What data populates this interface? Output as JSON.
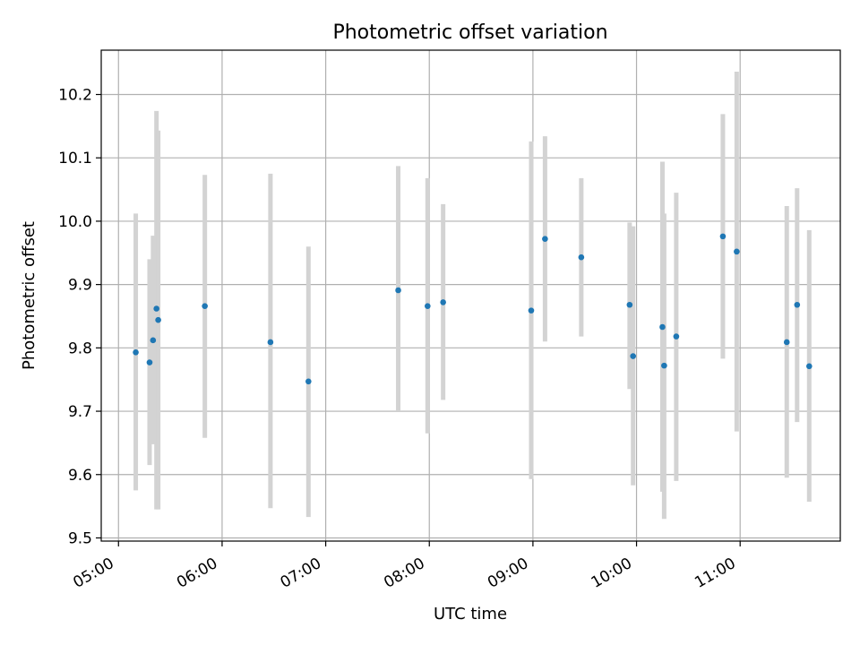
{
  "chart_data": {
    "type": "scatter",
    "title": "Photometric offset variation",
    "xlabel": "UTC time",
    "ylabel": "Photometric offset",
    "xlim": [
      "04:50",
      "11:58"
    ],
    "ylim": [
      9.495,
      10.27
    ],
    "grid": true,
    "x_ticks": [
      "05:00",
      "06:00",
      "07:00",
      "08:00",
      "09:00",
      "10:00",
      "11:00"
    ],
    "y_ticks": [
      "9.5",
      "9.6",
      "9.7",
      "9.8",
      "9.9",
      "10.0",
      "10.1",
      "10.2"
    ],
    "colors": {
      "marker": "#1f77b4",
      "errorbar": "#d3d3d3",
      "grid": "#b0b0b0"
    },
    "series": [
      {
        "points": [
          {
            "x": "05:10",
            "y": 9.793,
            "ylow": 9.575,
            "yhigh": 10.012
          },
          {
            "x": "05:18",
            "y": 9.777,
            "ylow": 9.615,
            "yhigh": 9.94
          },
          {
            "x": "05:20",
            "y": 9.812,
            "ylow": 9.648,
            "yhigh": 9.977
          },
          {
            "x": "05:22",
            "y": 9.862,
            "ylow": 9.545,
            "yhigh": 10.174
          },
          {
            "x": "05:23",
            "y": 9.844,
            "ylow": 9.545,
            "yhigh": 10.143
          },
          {
            "x": "05:50",
            "y": 9.866,
            "ylow": 9.658,
            "yhigh": 10.073
          },
          {
            "x": "06:28",
            "y": 9.809,
            "ylow": 9.547,
            "yhigh": 10.075
          },
          {
            "x": "06:50",
            "y": 9.747,
            "ylow": 9.533,
            "yhigh": 9.96
          },
          {
            "x": "07:42",
            "y": 9.891,
            "ylow": 9.7,
            "yhigh": 10.087
          },
          {
            "x": "07:59",
            "y": 9.866,
            "ylow": 9.665,
            "yhigh": 10.068
          },
          {
            "x": "08:08",
            "y": 9.872,
            "ylow": 9.718,
            "yhigh": 10.027
          },
          {
            "x": "08:59",
            "y": 9.859,
            "ylow": 9.593,
            "yhigh": 10.126
          },
          {
            "x": "09:07",
            "y": 9.972,
            "ylow": 9.81,
            "yhigh": 10.134
          },
          {
            "x": "09:28",
            "y": 9.943,
            "ylow": 9.818,
            "yhigh": 10.068
          },
          {
            "x": "09:56",
            "y": 9.868,
            "ylow": 9.735,
            "yhigh": 9.998
          },
          {
            "x": "09:58",
            "y": 9.787,
            "ylow": 9.583,
            "yhigh": 9.992
          },
          {
            "x": "10:15",
            "y": 9.833,
            "ylow": 9.573,
            "yhigh": 10.094
          },
          {
            "x": "10:16",
            "y": 9.772,
            "ylow": 9.53,
            "yhigh": 10.012
          },
          {
            "x": "10:23",
            "y": 9.818,
            "ylow": 9.59,
            "yhigh": 10.045
          },
          {
            "x": "10:50",
            "y": 9.976,
            "ylow": 9.783,
            "yhigh": 10.169
          },
          {
            "x": "10:58",
            "y": 9.952,
            "ylow": 9.668,
            "yhigh": 10.236
          },
          {
            "x": "11:27",
            "y": 9.809,
            "ylow": 9.595,
            "yhigh": 10.024
          },
          {
            "x": "11:33",
            "y": 9.868,
            "ylow": 9.683,
            "yhigh": 10.052
          },
          {
            "x": "11:40",
            "y": 9.771,
            "ylow": 9.557,
            "yhigh": 9.986
          }
        ]
      }
    ]
  }
}
